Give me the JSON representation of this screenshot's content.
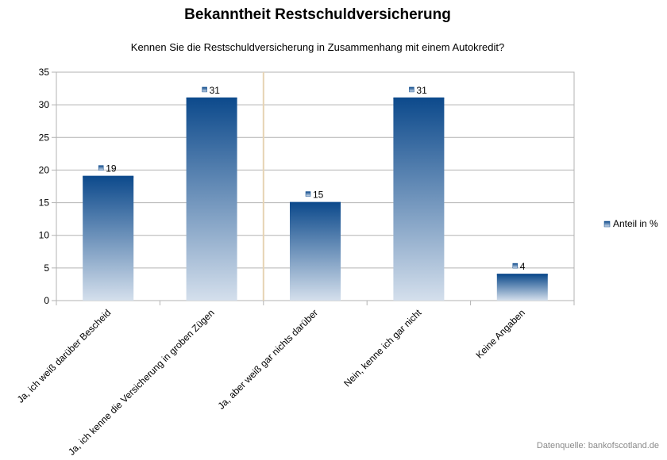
{
  "chart_data": {
    "type": "bar",
    "title": "Bekanntheit Restschuldversicherung",
    "subtitle": "Kennen Sie die Restschuldversicherung in Zusammenhang mit einem Autokredit?",
    "categories": [
      "Ja, ich weiß darüber Bescheid",
      "Ja, ich kenne die Versicherung in groben Zügen",
      "Ja, aber weiß gar nichts darüber",
      "Nein, kenne ich gar nicht",
      "Keine Angaben"
    ],
    "series": [
      {
        "name": "Anteil in %",
        "values": [
          19,
          31,
          15,
          31,
          4
        ]
      }
    ],
    "ylim": [
      0,
      35
    ],
    "yticks": [
      0,
      5,
      10,
      15,
      20,
      25,
      30,
      35
    ],
    "xlabel": "",
    "ylabel": "",
    "grid": true,
    "legend": "right",
    "colors": {
      "bar_top": "#0d4a8c",
      "bar_bottom": "#d4dfec",
      "grid": "#b3b3b3"
    }
  },
  "footer": {
    "source": "Datenquelle: bankofscotland.de"
  }
}
